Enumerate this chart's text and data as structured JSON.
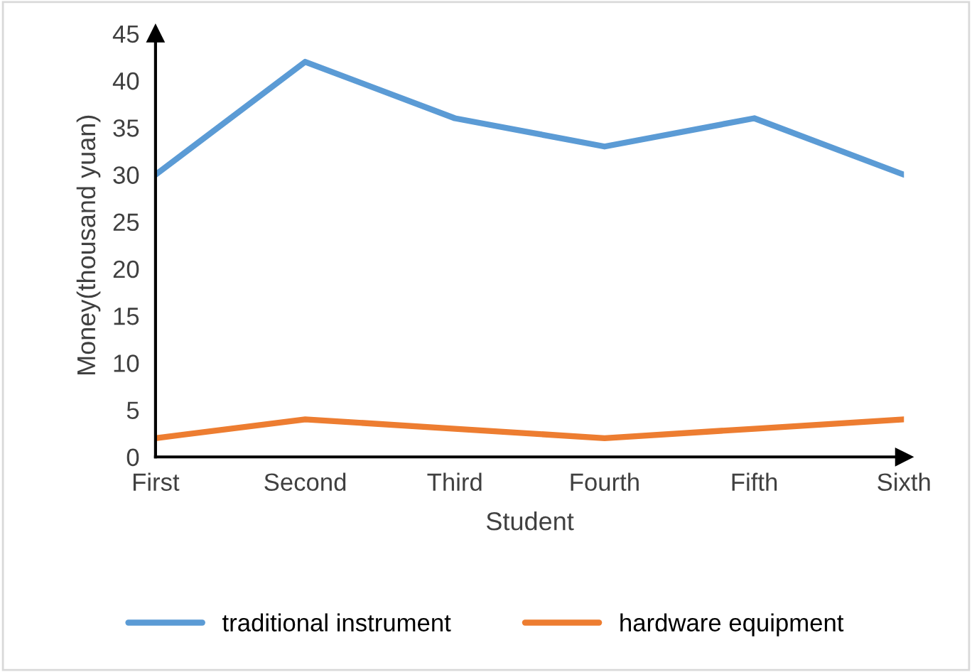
{
  "chart_data": {
    "type": "line",
    "xlabel": "Student",
    "ylabel": "Money(thousand yuan)",
    "categories": [
      "First",
      "Second",
      "Third",
      "Fourth",
      "Fifth",
      "Sixth"
    ],
    "series": [
      {
        "name": "traditional instrument",
        "color": "#5b9bd5",
        "values": [
          30,
          42,
          36,
          33,
          36,
          30
        ]
      },
      {
        "name": "hardware equipment",
        "color": "#ed7d31",
        "values": [
          2,
          4,
          3,
          2,
          3,
          4
        ]
      }
    ],
    "ylim": [
      0,
      45
    ],
    "yticks": [
      0,
      5,
      10,
      15,
      20,
      25,
      30,
      35,
      40,
      45
    ],
    "grid": false,
    "legend": "bottom",
    "marker": "none",
    "line_style": "solid"
  }
}
